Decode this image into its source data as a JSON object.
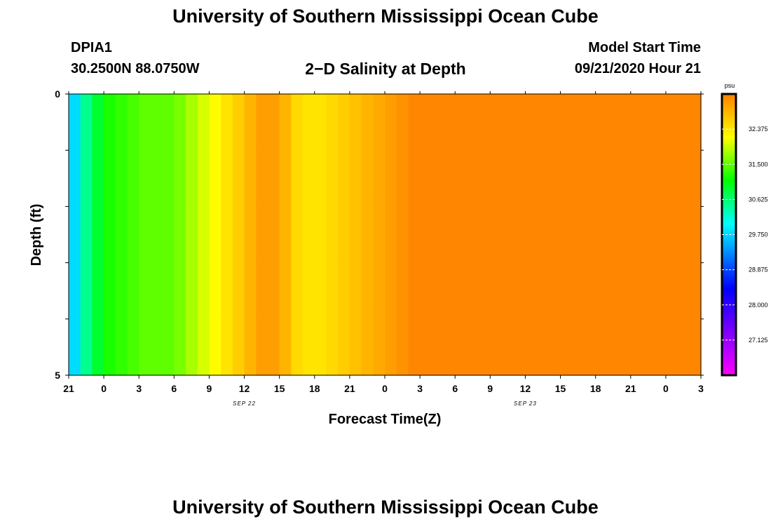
{
  "header": {
    "title": "University of Southern Mississippi Ocean Cube",
    "station_id": "DPIA1",
    "station_coords": "30.2500N 88.0750W",
    "chart_title": "2−D Salinity at Depth",
    "model_start_label": "Model Start Time",
    "model_start_value": "09/21/2020 Hour 21"
  },
  "footer": {
    "title": "University of Southern Mississippi Ocean Cube"
  },
  "chart_data": {
    "type": "heatmap",
    "title": "2-D Salinity at Depth",
    "xlabel": "Forecast Time(Z)",
    "ylabel": "Depth (ft)",
    "x_tick_labels": [
      "21",
      "0",
      "3",
      "6",
      "9",
      "12",
      "15",
      "18",
      "21",
      "0",
      "3",
      "6",
      "9",
      "12",
      "15",
      "18",
      "21",
      "0",
      "3"
    ],
    "date_labels": [
      {
        "text": "SEP 22",
        "x_tick_index": 5
      },
      {
        "text": "SEP 23",
        "x_tick_index": 13
      }
    ],
    "y_ticks": [
      0,
      1,
      2,
      3,
      4,
      5
    ],
    "y_tick_labels": [
      "0",
      "",
      "",
      "",
      "",
      "5"
    ],
    "ylim": [
      0,
      5
    ],
    "x_range_hours": [
      0,
      54
    ],
    "colorbar": {
      "unit": "psu",
      "range": [
        26.25,
        33.25
      ],
      "tick_labels": [
        "32.375",
        "31.500",
        "30.625",
        "29.750",
        "28.875",
        "28.000",
        "27.125"
      ],
      "colors": [
        "#ff00ff",
        "#bf00ff",
        "#7f00ff",
        "#3f00ff",
        "#0000ff",
        "#0050ff",
        "#00aaff",
        "#00ffff",
        "#00ff80",
        "#00ff00",
        "#80ff00",
        "#ffff00",
        "#ffc000",
        "#ff8000"
      ]
    },
    "depth_rows": 5,
    "column_hours": 1,
    "salinity_profile_surface": [
      29.8,
      30.5,
      30.9,
      31.2,
      31.3,
      31.4,
      31.5,
      31.5,
      31.5,
      31.6,
      31.8,
      32.0,
      32.2,
      32.4,
      32.6,
      32.8,
      33.0,
      33.0,
      32.8,
      32.5,
      32.4,
      32.4,
      32.5,
      32.6,
      32.7,
      32.8,
      32.9,
      33.0,
      33.1,
      33.2,
      33.2,
      33.2,
      33.2,
      33.2,
      33.2,
      33.2,
      33.2,
      33.2,
      33.2,
      33.2,
      33.2,
      33.2,
      33.2,
      33.2,
      33.2,
      33.2,
      33.2,
      33.2,
      33.2,
      33.2,
      33.2,
      33.2,
      33.2,
      33.2,
      33.2,
      33.2,
      33.2,
      33.2,
      33.2,
      33.2
    ]
  }
}
